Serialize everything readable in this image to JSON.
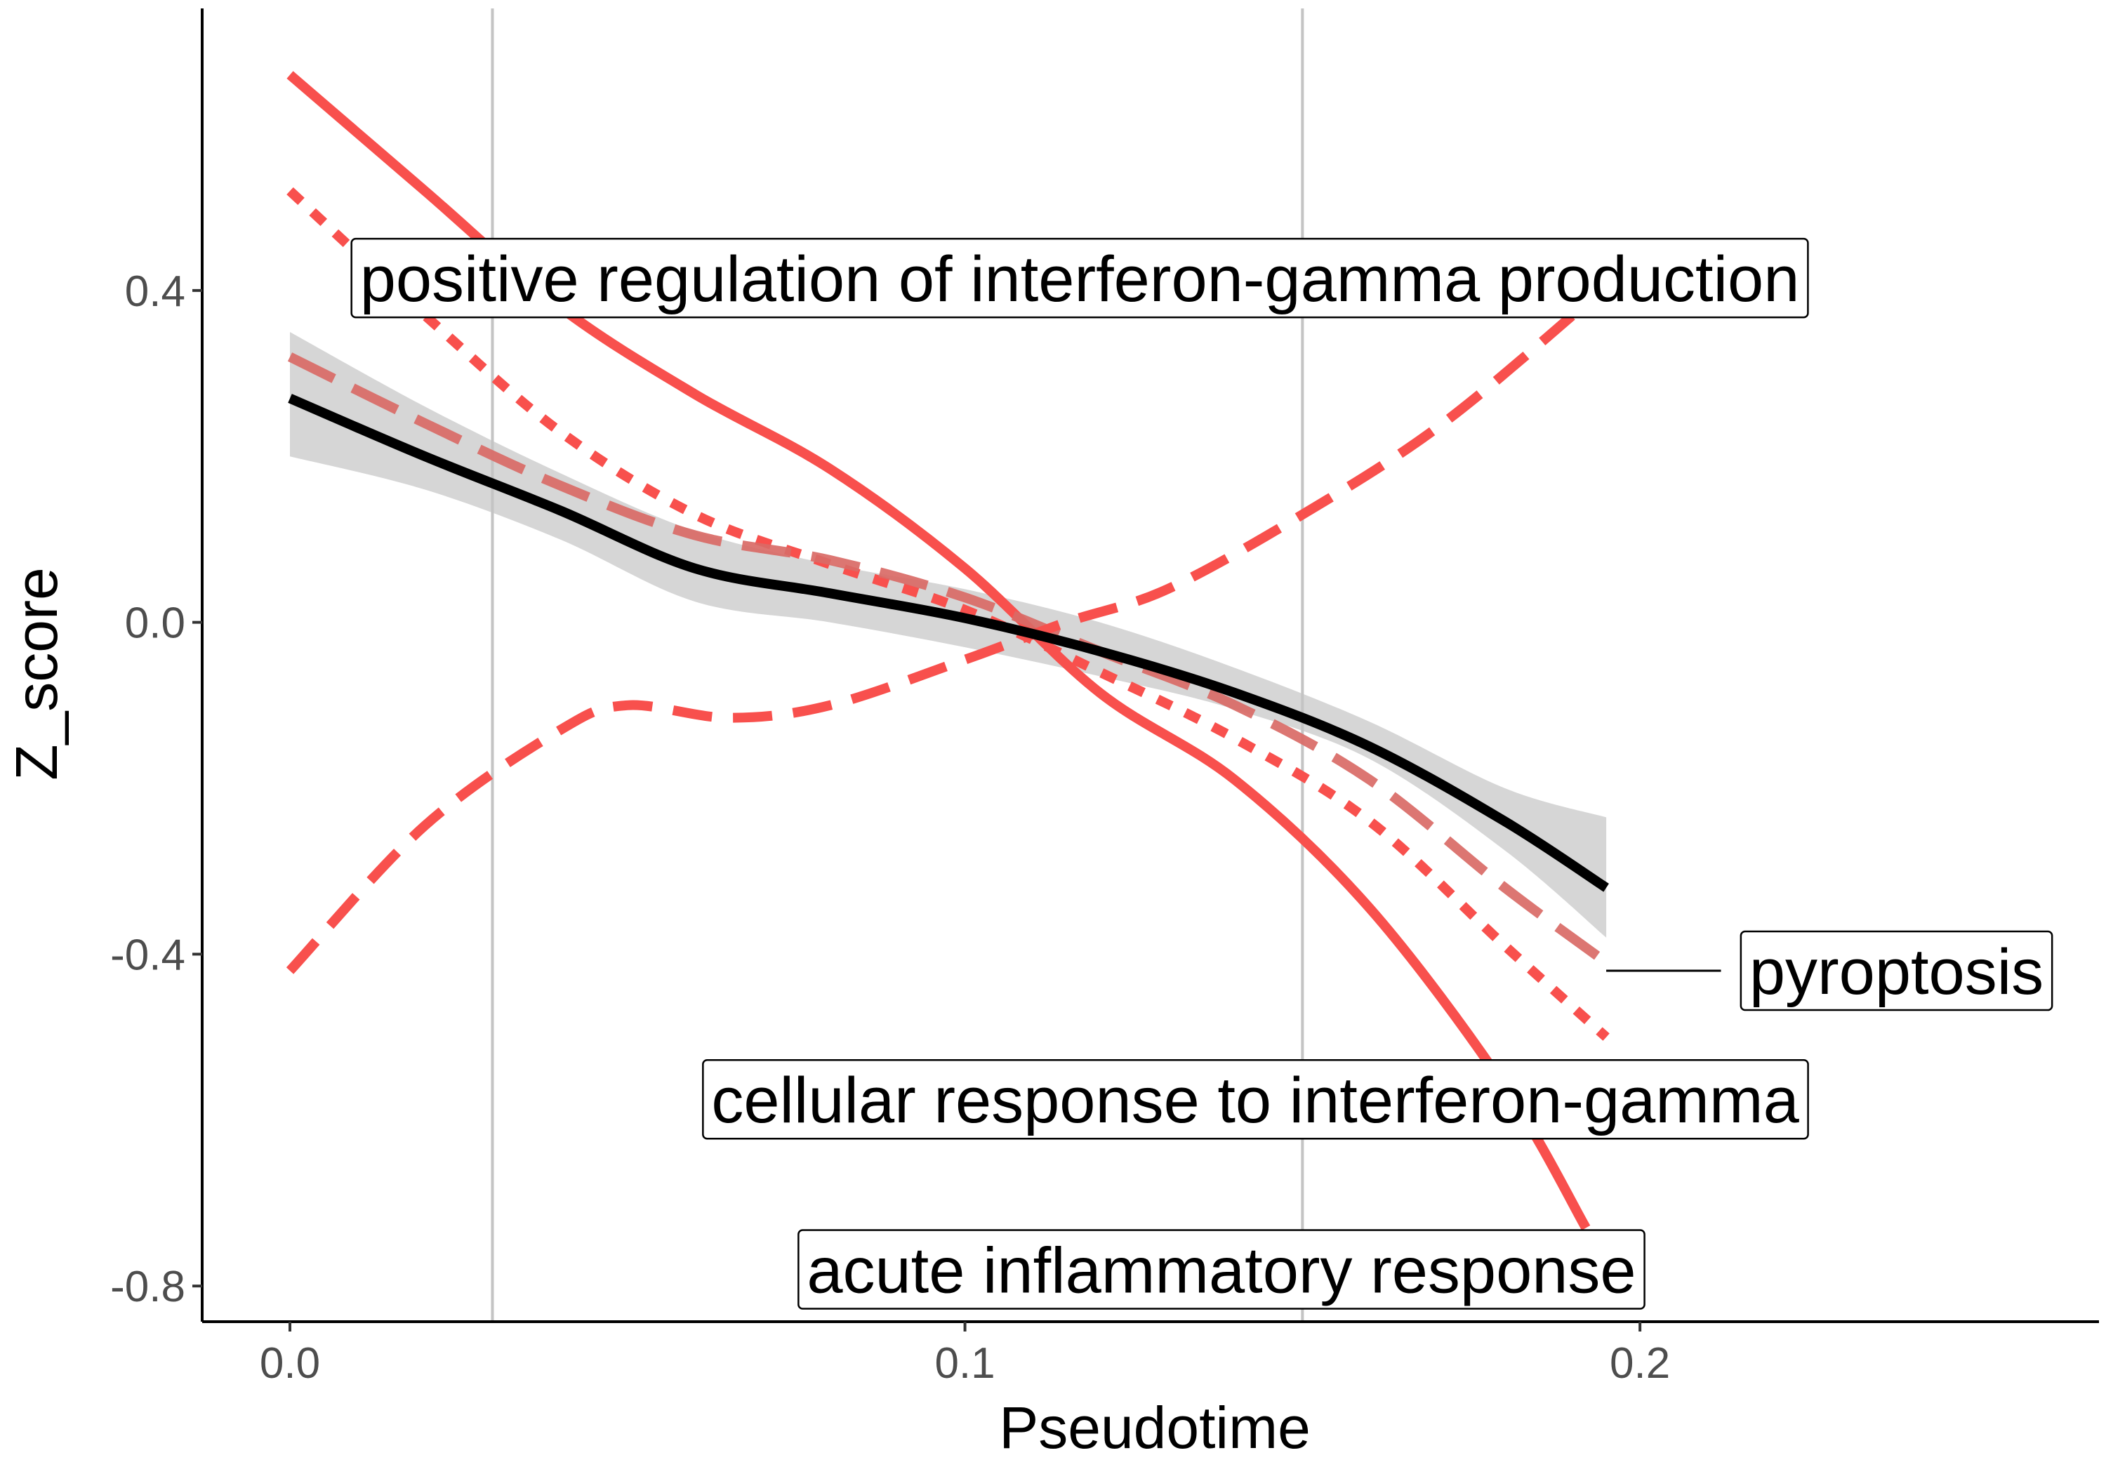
{
  "chart_data": {
    "type": "line",
    "title": "",
    "xlabel": "Pseudotime",
    "ylabel": "Z_score",
    "xlim": [
      -0.013,
      0.268
    ],
    "ylim": [
      -0.843,
      0.74
    ],
    "x_ticks": [
      0.0,
      0.1,
      0.2
    ],
    "x_tick_labels": [
      "0.0",
      "0.1",
      "0.2"
    ],
    "y_ticks": [
      0.4,
      0.0,
      -0.4,
      -0.8
    ],
    "y_tick_labels": [
      "0.4",
      "0.0",
      "-0.4",
      "-0.8"
    ],
    "grid": false,
    "legend": "none",
    "vlines": [
      0.03,
      0.15
    ],
    "colors": {
      "series": "#f8504d",
      "series_faded": "#d96a66",
      "mean": "#000000",
      "ribbon": "#d6d6d6",
      "vline": "#c4c4c4",
      "axis": "#000000"
    },
    "mean_line": {
      "x": [
        0.0,
        0.02,
        0.04,
        0.06,
        0.08,
        0.1,
        0.12,
        0.14,
        0.16,
        0.18,
        0.195
      ],
      "y": [
        0.27,
        0.2,
        0.135,
        0.065,
        0.035,
        0.005,
        -0.035,
        -0.085,
        -0.15,
        -0.24,
        -0.32
      ],
      "lower": [
        0.2,
        0.16,
        0.1,
        0.025,
        0.0,
        -0.03,
        -0.065,
        -0.105,
        -0.165,
        -0.275,
        -0.38
      ],
      "upper": [
        0.35,
        0.26,
        0.18,
        0.11,
        0.07,
        0.04,
        0.0,
        -0.055,
        -0.12,
        -0.2,
        -0.235
      ]
    },
    "series": [
      {
        "dash": "solid",
        "x": [
          0.0,
          0.02,
          0.04,
          0.06,
          0.08,
          0.1,
          0.12,
          0.14,
          0.16,
          0.18,
          0.192
        ],
        "y": [
          0.66,
          0.52,
          0.38,
          0.275,
          0.185,
          0.065,
          -0.085,
          -0.19,
          -0.345,
          -0.56,
          -0.73
        ]
      },
      {
        "dash": "dotted",
        "x": [
          0.0,
          0.02,
          0.04,
          0.06,
          0.08,
          0.1,
          0.12,
          0.14,
          0.16,
          0.18,
          0.195
        ],
        "y": [
          0.52,
          0.37,
          0.23,
          0.13,
          0.07,
          0.015,
          -0.06,
          -0.14,
          -0.24,
          -0.39,
          -0.5
        ]
      },
      {
        "dash": "longdash",
        "x": [
          0.0,
          0.02,
          0.04,
          0.06,
          0.08,
          0.1,
          0.12,
          0.14,
          0.16,
          0.18,
          0.195
        ],
        "y": [
          0.32,
          0.24,
          0.165,
          0.105,
          0.075,
          0.03,
          -0.035,
          -0.1,
          -0.19,
          -0.32,
          -0.41
        ]
      },
      {
        "dash": "dashed",
        "x": [
          0.0,
          0.02,
          0.04,
          0.05,
          0.065,
          0.08,
          0.1,
          0.115,
          0.13,
          0.15,
          0.17,
          0.19,
          0.195
        ],
        "y": [
          -0.42,
          -0.245,
          -0.13,
          -0.1,
          -0.115,
          -0.1,
          -0.045,
          0.0,
          0.04,
          0.13,
          0.235,
          0.37,
          0.41
        ]
      }
    ],
    "labels": [
      {
        "text": "positive regulation of interferon-gamma production",
        "x": 0.117,
        "y": 0.415
      },
      {
        "text": "pyroptosis",
        "x": 0.238,
        "y": -0.42,
        "connector": [
          0.195,
          0.212
        ]
      },
      {
        "text": "cellular response to interferon-gamma",
        "x": 0.143,
        "y": -0.575
      },
      {
        "text": "acute inflammatory response",
        "x": 0.138,
        "y": -0.78
      }
    ]
  }
}
